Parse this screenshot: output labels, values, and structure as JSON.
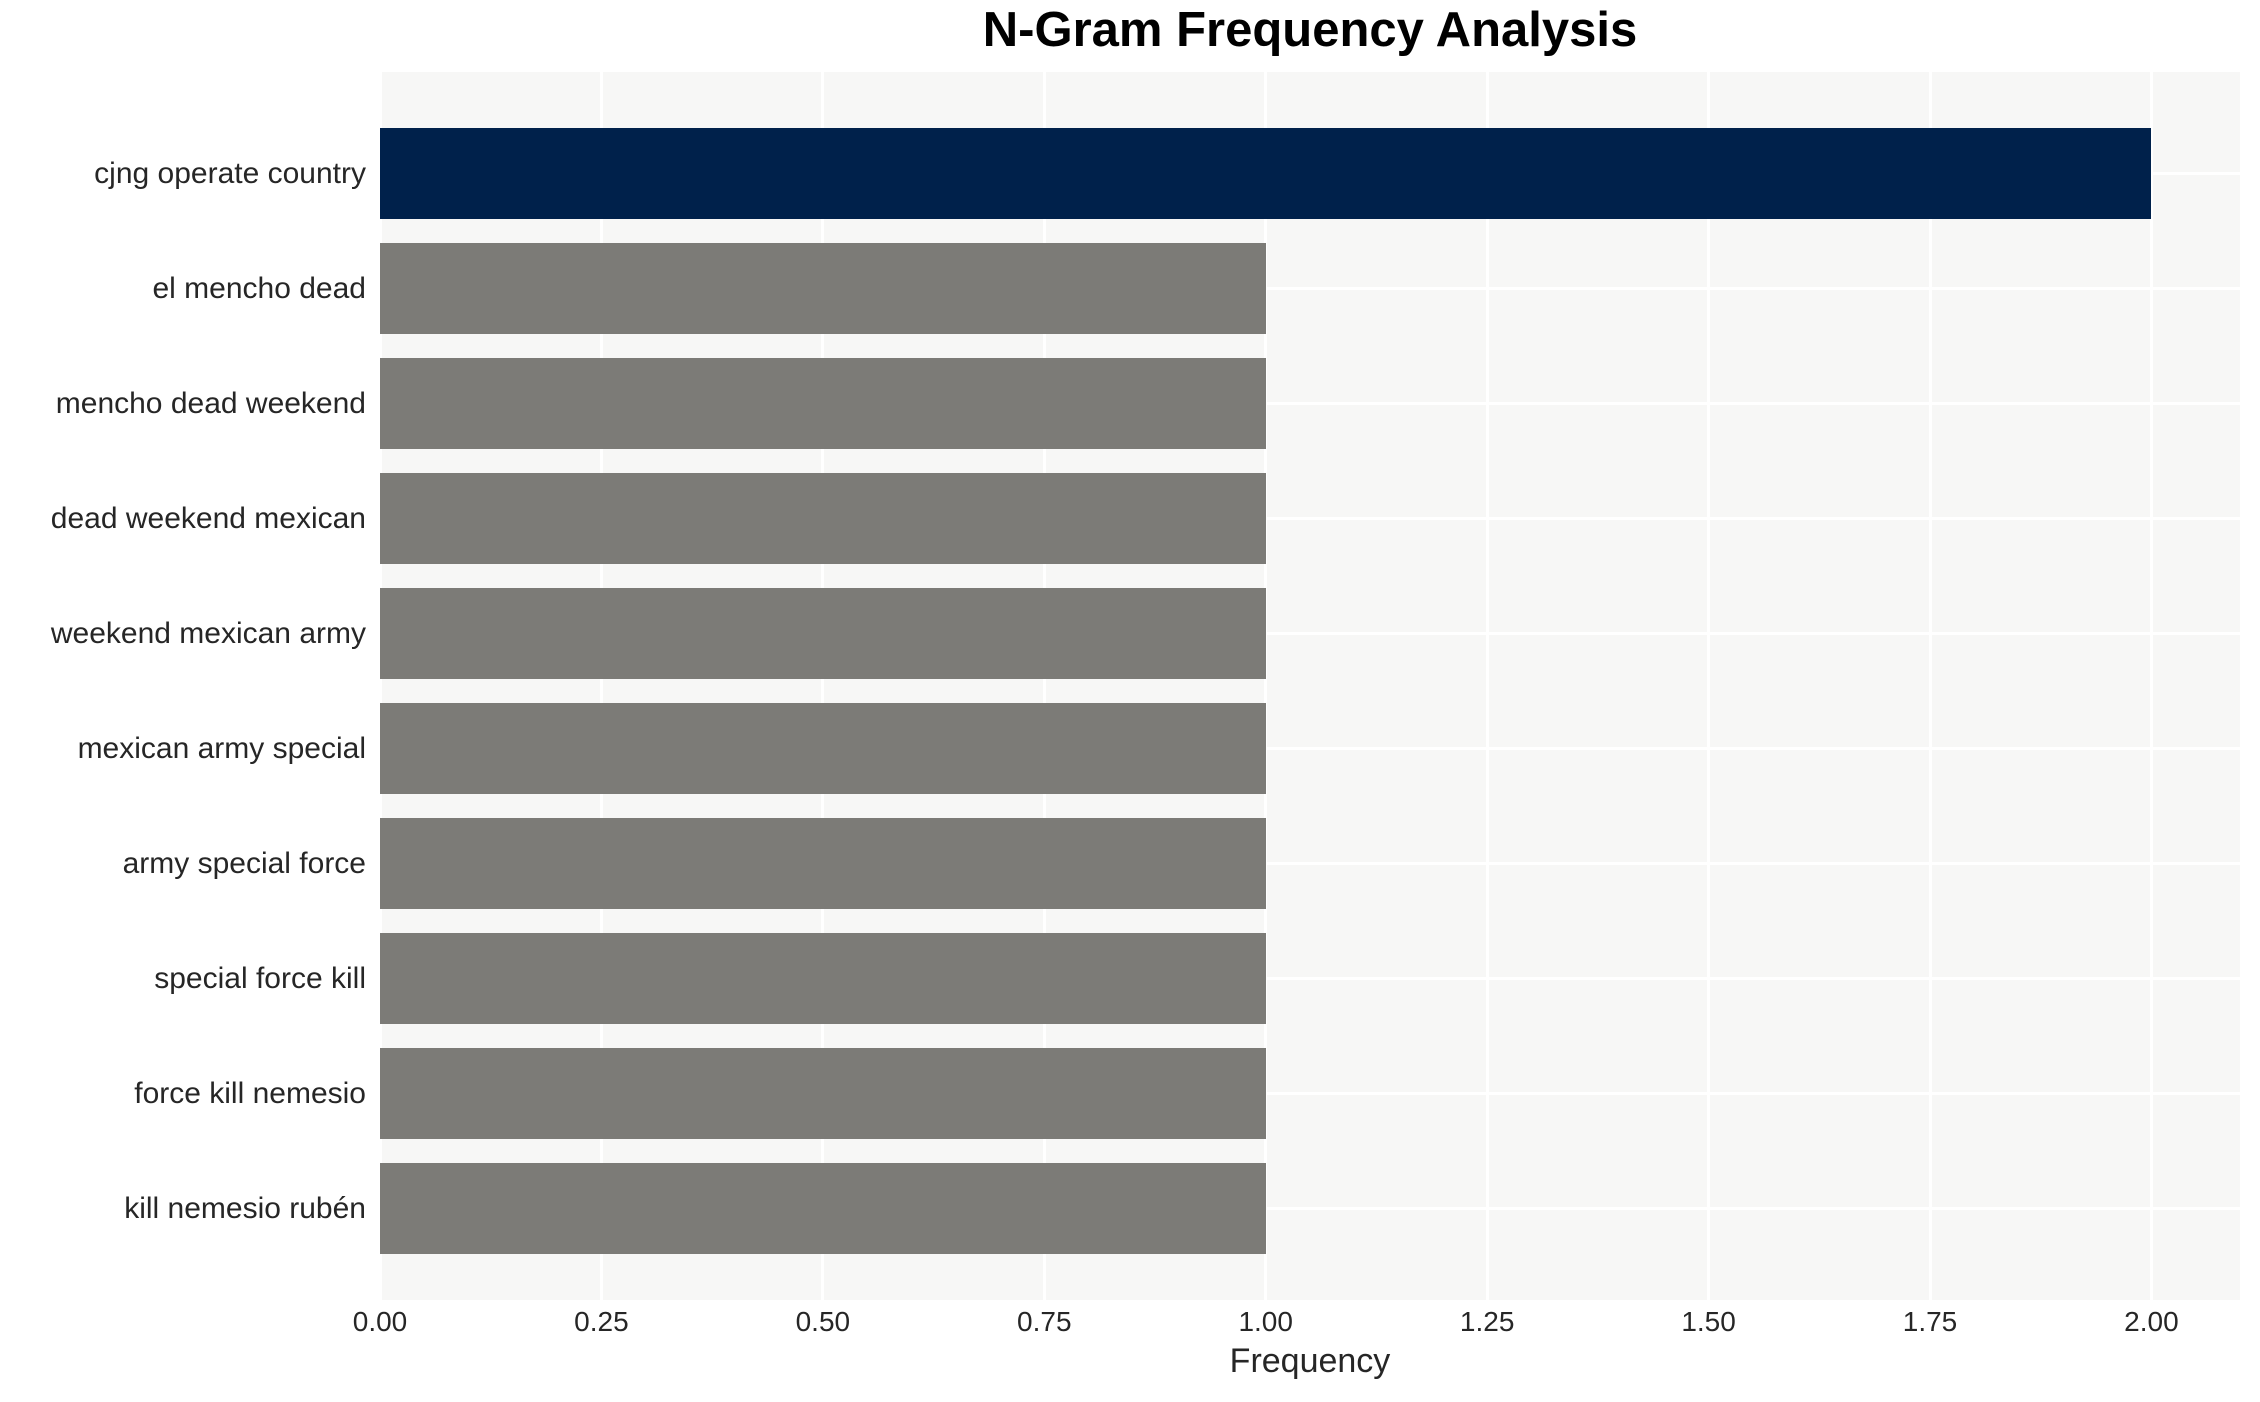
{
  "chart_data": {
    "type": "bar",
    "orientation": "horizontal",
    "title": "N-Gram Frequency Analysis",
    "xlabel": "Frequency",
    "ylabel": "",
    "categories": [
      "cjng operate country",
      "el mencho dead",
      "mencho dead weekend",
      "dead weekend mexican",
      "weekend mexican army",
      "mexican army special",
      "army special force",
      "special force kill",
      "force kill nemesio",
      "kill nemesio rubén"
    ],
    "values": [
      2,
      1,
      1,
      1,
      1,
      1,
      1,
      1,
      1,
      1
    ],
    "bar_colors": [
      "#00214b",
      "#7c7b77",
      "#7c7b77",
      "#7c7b77",
      "#7c7b77",
      "#7c7b77",
      "#7c7b77",
      "#7c7b77",
      "#7c7b77",
      "#7c7b77"
    ],
    "xticks": [
      0.0,
      0.25,
      0.5,
      0.75,
      1.0,
      1.25,
      1.5,
      1.75,
      2.0
    ],
    "xtick_labels": [
      "0.00",
      "0.25",
      "0.50",
      "0.75",
      "1.00",
      "1.25",
      "1.50",
      "1.75",
      "2.00"
    ],
    "xlim": [
      0,
      2.1
    ],
    "grid": true,
    "legend_position": "none",
    "colors": {
      "highlight_bar": "#00214b",
      "default_bar": "#7c7b77",
      "plot_background": "#f7f7f6",
      "gridline": "#ffffff",
      "tick_text": "#262626",
      "title_text": "#000000"
    }
  }
}
